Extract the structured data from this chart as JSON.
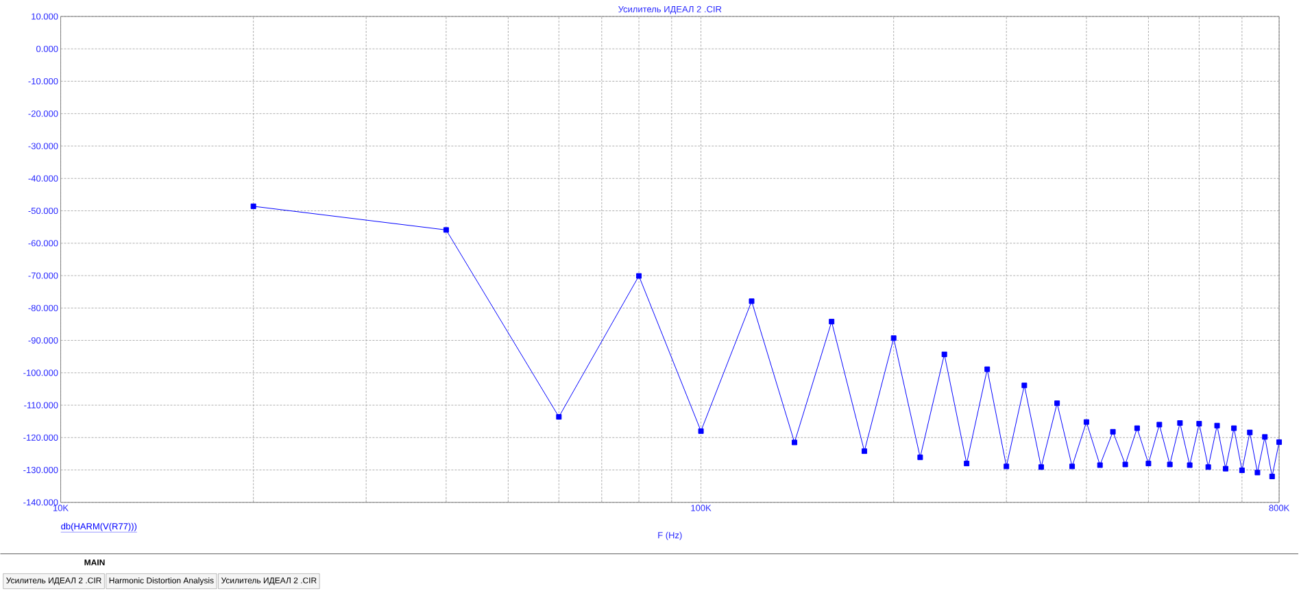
{
  "chart_data": {
    "type": "line",
    "title": "Усилитель ИДЕАЛ 2 .CIR",
    "xlabel": "F (Hz)",
    "log": "x",
    "grid": true,
    "legend": "bottom left",
    "marker": "square",
    "line_style": "solid",
    "xlim": [
      10000,
      800000
    ],
    "xticks": [
      {
        "value": 10000,
        "label": "10K"
      },
      {
        "value": 20000,
        "label": null
      },
      {
        "value": 30000,
        "label": null
      },
      {
        "value": 40000,
        "label": null
      },
      {
        "value": 50000,
        "label": null
      },
      {
        "value": 60000,
        "label": null
      },
      {
        "value": 70000,
        "label": null
      },
      {
        "value": 80000,
        "label": null
      },
      {
        "value": 90000,
        "label": null
      },
      {
        "value": 100000,
        "label": "100K"
      },
      {
        "value": 200000,
        "label": null
      },
      {
        "value": 300000,
        "label": null
      },
      {
        "value": 400000,
        "label": null
      },
      {
        "value": 500000,
        "label": null
      },
      {
        "value": 600000,
        "label": null
      },
      {
        "value": 700000,
        "label": null
      },
      {
        "value": 800000,
        "label": "800K"
      }
    ],
    "ylim": [
      -140,
      10
    ],
    "yticks": [
      {
        "value": -140,
        "label": "-140.000"
      },
      {
        "value": -130,
        "label": "-130.000"
      },
      {
        "value": -120,
        "label": "-120.000"
      },
      {
        "value": -110,
        "label": "-110.000"
      },
      {
        "value": -100,
        "label": "-100.000"
      },
      {
        "value": -90,
        "label": "-90.000"
      },
      {
        "value": -80,
        "label": "-80.000"
      },
      {
        "value": -70,
        "label": "-70.000"
      },
      {
        "value": -60,
        "label": "-60.000"
      },
      {
        "value": -50,
        "label": "-50.000"
      },
      {
        "value": -40,
        "label": "-40.000"
      },
      {
        "value": -30,
        "label": "-30.000"
      },
      {
        "value": -20,
        "label": "-20.000"
      },
      {
        "value": -10,
        "label": "-10.000"
      },
      {
        "value": 0,
        "label": "0.000"
      },
      {
        "value": 10,
        "label": "10.000"
      }
    ],
    "x": [
      20000,
      40000,
      60000,
      80000,
      100000,
      120000,
      140000,
      160000,
      180000,
      200000,
      220000,
      240000,
      260000,
      280000,
      300000,
      320000,
      340000,
      360000,
      380000,
      400000,
      420000,
      440000,
      460000,
      480000,
      500000,
      520000,
      540000,
      560000,
      580000,
      600000,
      620000,
      640000,
      660000,
      680000,
      700000,
      720000,
      740000,
      760000,
      780000,
      800000
    ],
    "series": [
      {
        "name": "db(HARM(V(R77)))",
        "color": "#0000ff",
        "values": [
          -48.6,
          -55.9,
          -113.6,
          -70.1,
          -118.0,
          -77.9,
          -121.5,
          -84.2,
          -124.2,
          -89.3,
          -126.1,
          -94.3,
          -128.0,
          -98.9,
          -128.9,
          -103.9,
          -129.1,
          -109.4,
          -128.9,
          -115.2,
          -128.5,
          -118.2,
          -128.3,
          -117.1,
          -128.0,
          -116.0,
          -128.3,
          -115.5,
          -128.5,
          -115.7,
          -129.1,
          -116.3,
          -129.6,
          -117.1,
          -130.1,
          -118.4,
          -130.8,
          -119.8,
          -132.0,
          -121.4
        ]
      }
    ],
    "annotations": [
      "MAIN",
      "Усилитель ИДЕАЛ 2 .CIR",
      "Harmonic Distortion Analysis",
      "Усилитель ИДЕАЛ 2 .CIR"
    ]
  }
}
